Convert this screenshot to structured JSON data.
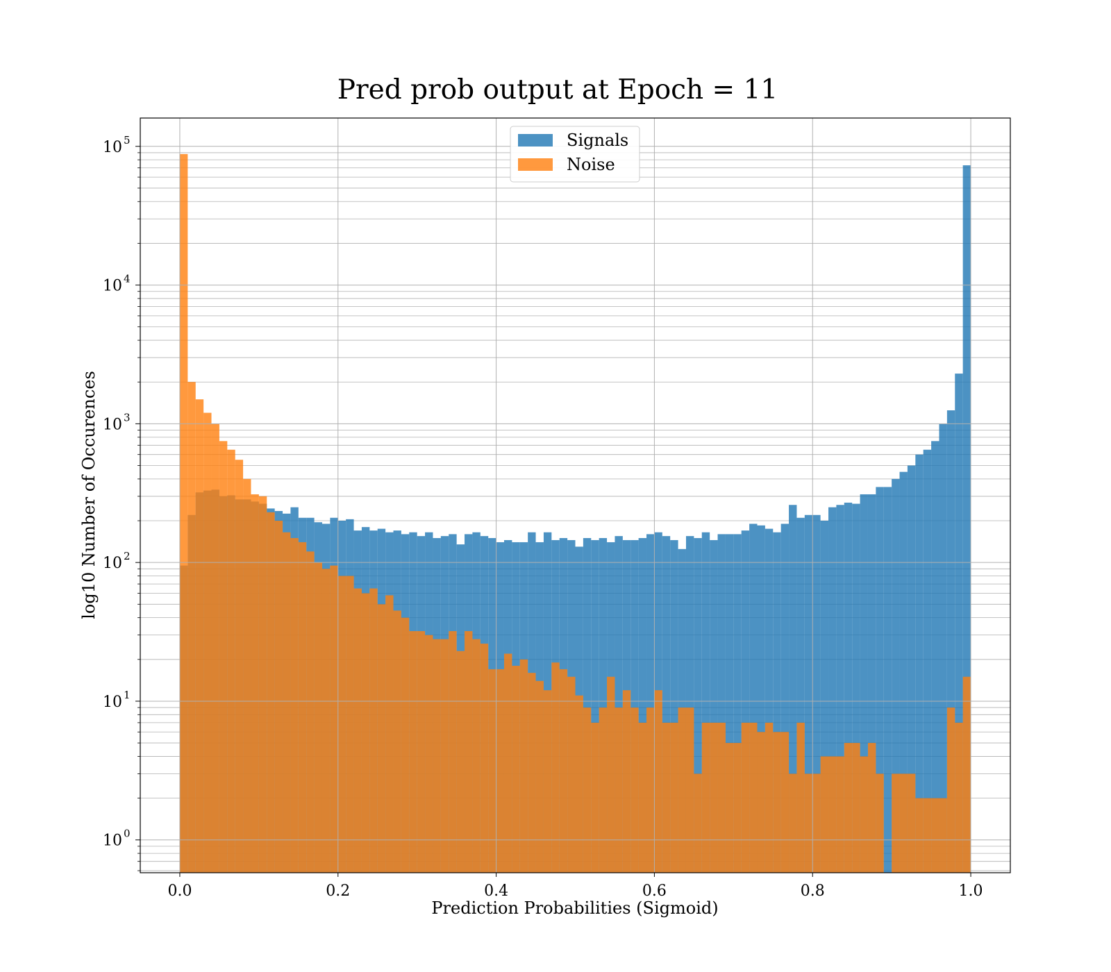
{
  "chart_data": {
    "type": "bar",
    "title": "Pred prob output at Epoch = 11",
    "xlabel": "Prediction Probabilities (Sigmoid)",
    "ylabel": "log10 Number of Occurences",
    "y_scale": "log",
    "xlim": [
      -0.05,
      1.05
    ],
    "ylim": [
      0.58,
      160000
    ],
    "x_ticks": [
      "0.0",
      "0.2",
      "0.4",
      "0.6",
      "0.8",
      "1.0"
    ],
    "y_ticks": [
      {
        "base": "10",
        "exp": "0"
      },
      {
        "base": "10",
        "exp": "1"
      },
      {
        "base": "10",
        "exp": "2"
      },
      {
        "base": "10",
        "exp": "3"
      },
      {
        "base": "10",
        "exp": "4"
      },
      {
        "base": "10",
        "exp": "5"
      }
    ],
    "grid": true,
    "legend_position": "top-center",
    "bin_range": [
      0,
      1
    ],
    "bin_count": 100,
    "series": [
      {
        "name": "Signals",
        "color": "#1f77b4",
        "values": [
          95,
          220,
          320,
          330,
          335,
          300,
          305,
          285,
          285,
          275,
          265,
          245,
          235,
          225,
          250,
          210,
          210,
          195,
          190,
          210,
          200,
          205,
          170,
          180,
          170,
          175,
          165,
          170,
          160,
          165,
          155,
          165,
          150,
          155,
          160,
          135,
          160,
          165,
          155,
          150,
          140,
          145,
          140,
          140,
          165,
          140,
          165,
          145,
          150,
          145,
          130,
          150,
          145,
          150,
          140,
          155,
          145,
          145,
          150,
          160,
          165,
          155,
          145,
          125,
          155,
          150,
          165,
          145,
          160,
          160,
          160,
          170,
          190,
          185,
          175,
          165,
          190,
          260,
          210,
          220,
          220,
          200,
          250,
          260,
          270,
          265,
          310,
          310,
          350,
          350,
          400,
          450,
          500,
          600,
          650,
          750,
          1000,
          1250,
          2300,
          73000
        ]
      },
      {
        "name": "Noise",
        "color": "#ff7f0e",
        "values": [
          88000,
          2000,
          1500,
          1200,
          1000,
          750,
          650,
          550,
          400,
          310,
          300,
          230,
          200,
          165,
          150,
          140,
          120,
          100,
          90,
          95,
          80,
          80,
          65,
          60,
          65,
          50,
          58,
          45,
          40,
          32,
          32,
          30,
          28,
          28,
          32,
          23,
          32,
          28,
          26,
          17,
          17,
          22,
          18,
          20,
          16,
          14,
          12,
          19,
          17,
          15,
          11,
          9,
          7,
          9,
          15,
          9,
          12,
          9,
          7,
          9,
          12,
          7,
          7,
          9,
          9,
          3,
          7,
          7,
          7,
          5,
          5,
          7,
          7,
          6,
          7,
          6,
          6,
          3,
          7,
          3,
          3,
          4,
          4,
          4,
          5,
          5,
          4,
          5,
          3,
          0,
          3,
          3,
          3,
          2,
          2,
          2,
          2,
          9,
          7,
          15
        ]
      }
    ]
  }
}
